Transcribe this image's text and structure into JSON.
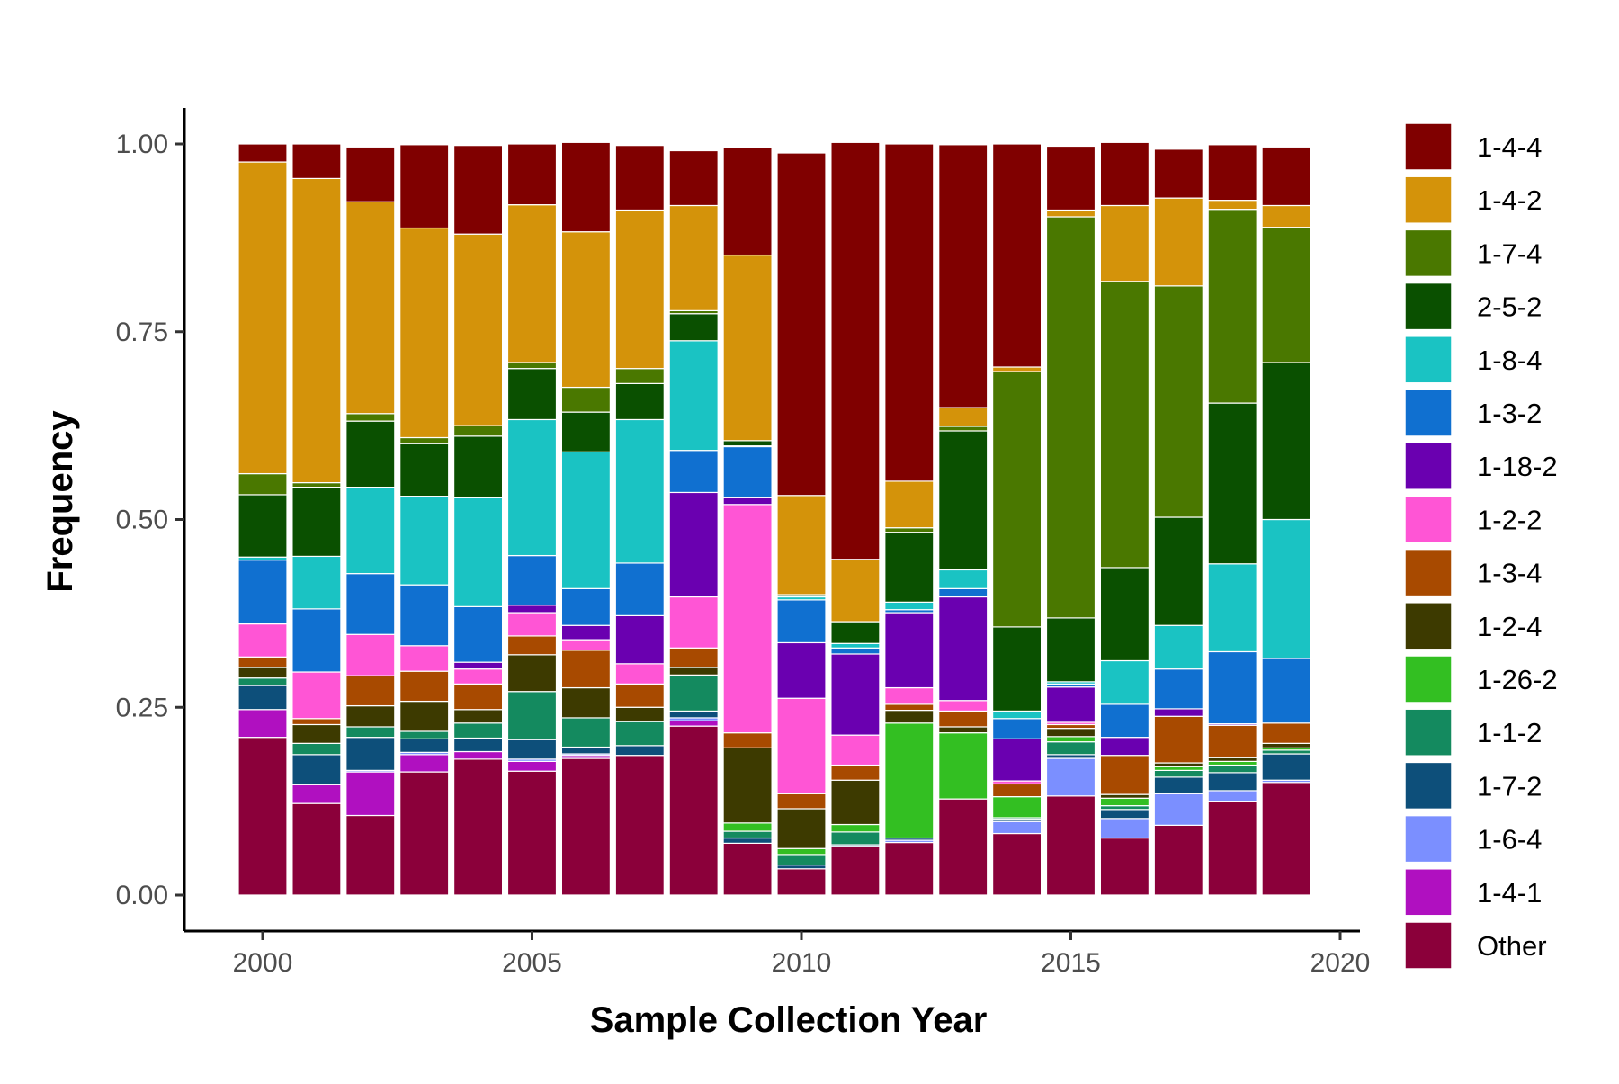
{
  "chart_data": {
    "type": "bar",
    "stacked": true,
    "xlabel": "Sample Collection Year",
    "ylabel": "Frequency",
    "ylim": [
      0,
      1.05
    ],
    "xlim": [
      1998.5,
      2020.5
    ],
    "yticks": [
      "0.00",
      "0.25",
      "0.50",
      "0.75",
      "1.00"
    ],
    "ytick_values": [
      0,
      0.25,
      0.5,
      0.75,
      1.0
    ],
    "xticks": [
      "2000",
      "2005",
      "2010",
      "2015",
      "2020"
    ],
    "xtick_values": [
      2000,
      2005,
      2010,
      2015,
      2020
    ],
    "legend_position": "right",
    "grid": false,
    "categories": [
      "2000",
      "2001",
      "2002",
      "2003",
      "2004",
      "2005",
      "2006",
      "2007",
      "2008",
      "2009",
      "2010",
      "2011",
      "2012",
      "2013",
      "2014",
      "2015",
      "2016",
      "2017",
      "2018",
      "2019"
    ],
    "series": [
      {
        "name": "Other",
        "color": "#8B003A",
        "values": [
          0.21,
          0.122,
          0.106,
          0.164,
          0.181,
          0.165,
          0.182,
          0.186,
          0.225,
          0.069,
          0.035,
          0.065,
          0.07,
          0.128,
          0.082,
          0.132,
          0.076,
          0.093,
          0.125,
          0.15
        ]
      },
      {
        "name": "1-4-1",
        "color": "#B010C0",
        "values": [
          0.037,
          0.025,
          0.058,
          0.023,
          0.01,
          0.013,
          0.004,
          0.0,
          0.007,
          0.0,
          0.0,
          0.0,
          0.0,
          0.0,
          0.0,
          0.0,
          0.0,
          0.0,
          0.0,
          0.0
        ]
      },
      {
        "name": "1-6-4",
        "color": "#7B8FFF",
        "values": [
          0.0,
          0.0,
          0.002,
          0.003,
          0.0,
          0.003,
          0.002,
          0.0,
          0.004,
          0.0,
          0.0,
          0.0,
          0.003,
          0.0,
          0.016,
          0.05,
          0.026,
          0.042,
          0.014,
          0.003
        ]
      },
      {
        "name": "1-7-2",
        "color": "#0D4F7A",
        "values": [
          0.032,
          0.04,
          0.044,
          0.018,
          0.018,
          0.026,
          0.009,
          0.013,
          0.009,
          0.007,
          0.005,
          0.002,
          0.003,
          0.0,
          0.003,
          0.005,
          0.012,
          0.022,
          0.024,
          0.035
        ]
      },
      {
        "name": "1-1-2",
        "color": "#148A5F",
        "values": [
          0.01,
          0.015,
          0.014,
          0.01,
          0.02,
          0.064,
          0.039,
          0.032,
          0.048,
          0.009,
          0.014,
          0.017,
          0.0,
          0.0,
          0.002,
          0.017,
          0.005,
          0.009,
          0.01,
          0.005
        ]
      },
      {
        "name": "1-26-2",
        "color": "#33BF22",
        "values": [
          0.0,
          0.0,
          0.0,
          0.0,
          0.0,
          0.0,
          0.0,
          0.0,
          0.0,
          0.011,
          0.008,
          0.01,
          0.153,
          0.088,
          0.028,
          0.007,
          0.01,
          0.005,
          0.005,
          0.003
        ]
      },
      {
        "name": "1-2-4",
        "color": "#3D3A00",
        "values": [
          0.014,
          0.025,
          0.028,
          0.04,
          0.018,
          0.049,
          0.04,
          0.019,
          0.01,
          0.1,
          0.053,
          0.059,
          0.017,
          0.008,
          0.0,
          0.011,
          0.005,
          0.005,
          0.005,
          0.006
        ]
      },
      {
        "name": "1-3-4",
        "color": "#A84A00",
        "values": [
          0.014,
          0.008,
          0.04,
          0.04,
          0.034,
          0.025,
          0.05,
          0.031,
          0.026,
          0.02,
          0.02,
          0.02,
          0.008,
          0.021,
          0.017,
          0.005,
          0.052,
          0.062,
          0.043,
          0.027
        ]
      },
      {
        "name": "1-2-2",
        "color": "#FF55D5",
        "values": [
          0.044,
          0.062,
          0.055,
          0.034,
          0.02,
          0.031,
          0.014,
          0.027,
          0.068,
          0.304,
          0.127,
          0.04,
          0.022,
          0.014,
          0.004,
          0.003,
          0.0,
          0.0,
          0.0,
          0.0
        ]
      },
      {
        "name": "1-18-2",
        "color": "#6A00B0",
        "values": [
          0.0,
          0.0,
          0.0,
          0.0,
          0.009,
          0.01,
          0.019,
          0.064,
          0.139,
          0.009,
          0.074,
          0.108,
          0.1,
          0.138,
          0.056,
          0.047,
          0.024,
          0.01,
          0.002,
          0.0
        ]
      },
      {
        "name": "1-3-2",
        "color": "#1070D0",
        "values": [
          0.085,
          0.084,
          0.081,
          0.081,
          0.074,
          0.066,
          0.049,
          0.07,
          0.056,
          0.068,
          0.057,
          0.008,
          0.004,
          0.011,
          0.027,
          0.004,
          0.044,
          0.053,
          0.096,
          0.086
        ]
      },
      {
        "name": "1-8-4",
        "color": "#1AC3C3",
        "values": [
          0.004,
          0.07,
          0.115,
          0.118,
          0.145,
          0.181,
          0.182,
          0.191,
          0.146,
          0.001,
          0.004,
          0.006,
          0.01,
          0.025,
          0.01,
          0.003,
          0.058,
          0.058,
          0.117,
          0.185
        ]
      },
      {
        "name": "2-5-2",
        "color": "#0A5000",
        "values": [
          0.083,
          0.092,
          0.088,
          0.07,
          0.082,
          0.068,
          0.053,
          0.048,
          0.036,
          0.007,
          0.003,
          0.029,
          0.093,
          0.185,
          0.112,
          0.085,
          0.124,
          0.144,
          0.214,
          0.209
        ]
      },
      {
        "name": "1-7-4",
        "color": "#4A7800",
        "values": [
          0.028,
          0.006,
          0.01,
          0.008,
          0.014,
          0.008,
          0.033,
          0.02,
          0.004,
          0.0,
          0.0,
          0.0,
          0.006,
          0.006,
          0.34,
          0.534,
          0.381,
          0.308,
          0.258,
          0.18
        ]
      },
      {
        "name": "1-4-2",
        "color": "#D4930A",
        "values": [
          0.415,
          0.405,
          0.282,
          0.279,
          0.255,
          0.21,
          0.207,
          0.211,
          0.14,
          0.247,
          0.132,
          0.083,
          0.062,
          0.025,
          0.006,
          0.009,
          0.101,
          0.117,
          0.012,
          0.029
        ]
      },
      {
        "name": "1-4-4",
        "color": "#800000",
        "values": [
          0.024,
          0.046,
          0.073,
          0.111,
          0.118,
          0.081,
          0.119,
          0.086,
          0.073,
          0.143,
          0.456,
          0.555,
          0.449,
          0.35,
          0.297,
          0.085,
          0.084,
          0.065,
          0.074,
          0.078
        ]
      }
    ]
  }
}
